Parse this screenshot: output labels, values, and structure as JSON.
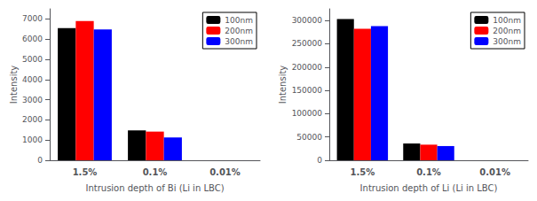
{
  "chart_data": [
    {
      "type": "bar",
      "categories": [
        "1.5%",
        "0.1%",
        "0.01%"
      ],
      "series": [
        {
          "name": "100nm",
          "color": "#000000",
          "values": [
            6550,
            1480,
            0
          ]
        },
        {
          "name": "200nm",
          "color": "#ff0000",
          "values": [
            6900,
            1420,
            0
          ]
        },
        {
          "name": "300nm",
          "color": "#0000ff",
          "values": [
            6480,
            1130,
            0
          ]
        }
      ],
      "xlabel": "Intrusion depth of Bi (Li in LBC)",
      "ylabel": "Intensity",
      "ylim": [
        0,
        7500
      ],
      "yticks": [
        0,
        1000,
        2000,
        3000,
        4000,
        5000,
        6000,
        7000
      ],
      "grid": false,
      "legend": "upper right"
    },
    {
      "type": "bar",
      "categories": [
        "1.5%",
        "0.1%",
        "0.01%"
      ],
      "series": [
        {
          "name": "100nm",
          "color": "#000000",
          "values": [
            303000,
            36000,
            0
          ]
        },
        {
          "name": "200nm",
          "color": "#ff0000",
          "values": [
            282000,
            33500,
            0
          ]
        },
        {
          "name": "300nm",
          "color": "#0000ff",
          "values": [
            288000,
            30500,
            0
          ]
        }
      ],
      "xlabel": "Intrusion depth of Li (Li in LBC)",
      "ylabel": "Intensity",
      "ylim": [
        0,
        325000
      ],
      "yticks": [
        0,
        50000,
        100000,
        150000,
        200000,
        250000,
        300000
      ],
      "grid": false,
      "legend": "upper right"
    }
  ]
}
